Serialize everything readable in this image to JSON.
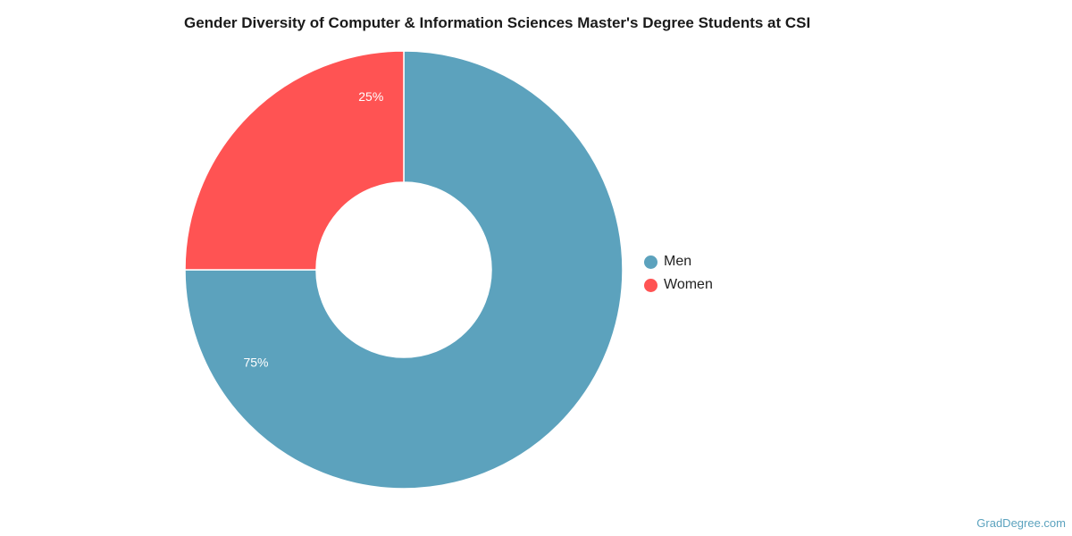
{
  "chart_data": {
    "type": "pie",
    "donut": true,
    "title": "Gender Diversity of Computer & Information Sciences Master's Degree Students at CSI",
    "categories": [
      "Men",
      "Women"
    ],
    "values": [
      75,
      25
    ],
    "value_labels": [
      "75%",
      "25%"
    ],
    "colors": [
      "#5ca2bd",
      "#ff5353"
    ],
    "legend_position": "right"
  },
  "watermark": "GradDegree.com"
}
